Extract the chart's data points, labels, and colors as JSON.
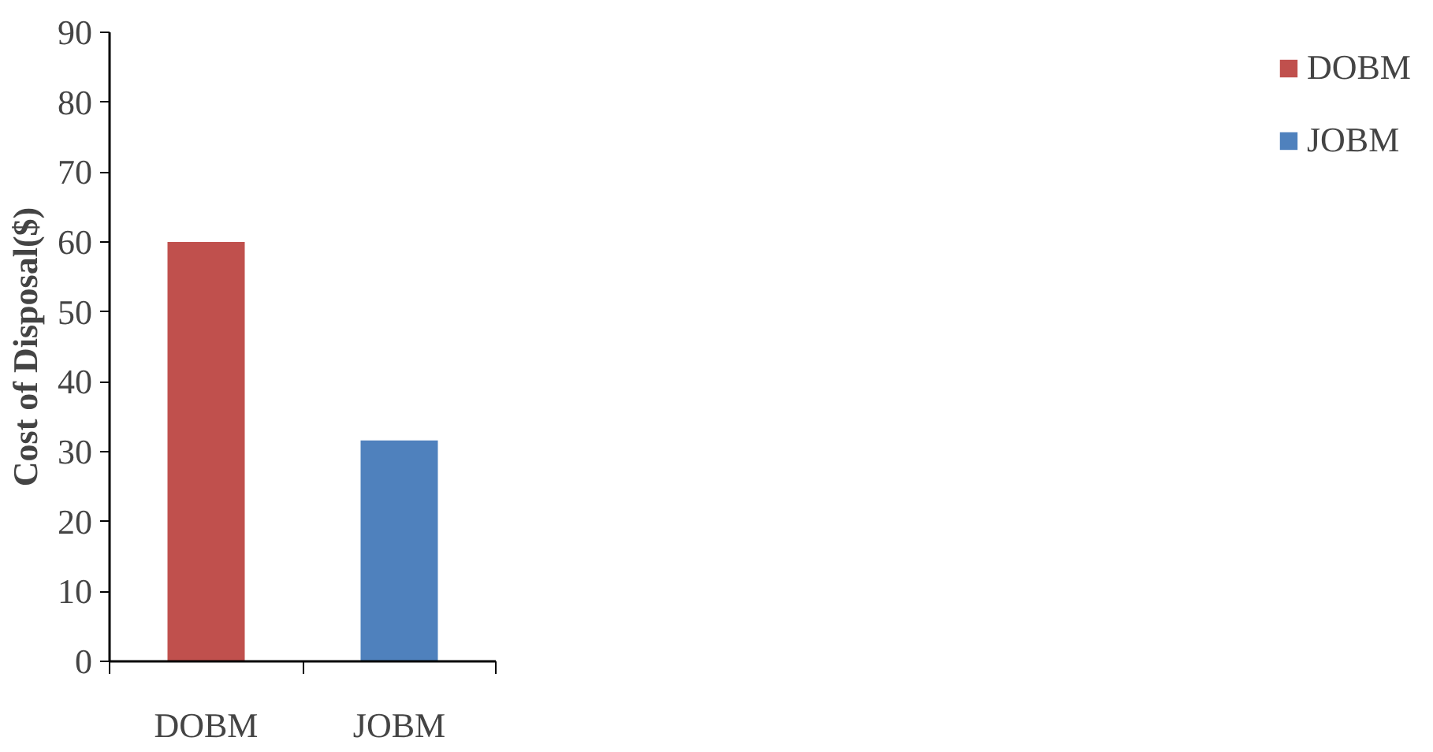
{
  "chart_data": {
    "type": "bar",
    "ylabel": "Cost of Disposal($)",
    "categories": [
      "DOBM",
      "JOBM"
    ],
    "series": [
      {
        "name": "DOBM",
        "color": "#c0504d",
        "values": [
          60,
          null
        ]
      },
      {
        "name": "JOBM",
        "color": "#4f81bd",
        "values": [
          null,
          31.6
        ]
      }
    ],
    "ylim": [
      0,
      90
    ],
    "yticks": [
      0,
      10,
      20,
      30,
      40,
      50,
      60,
      70,
      80,
      90
    ],
    "grid": false,
    "legend": "right"
  }
}
